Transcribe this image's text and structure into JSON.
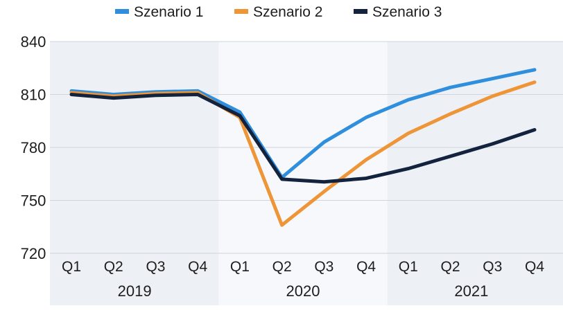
{
  "chart_data": {
    "type": "line",
    "title": "",
    "xlabel": "",
    "ylabel": "",
    "ylim": [
      720,
      840
    ],
    "yticks": [
      720,
      750,
      780,
      810,
      840
    ],
    "grid": true,
    "legend_position": "top",
    "categories": [
      "Q1",
      "Q2",
      "Q3",
      "Q4",
      "Q1",
      "Q2",
      "Q3",
      "Q4",
      "Q1",
      "Q2",
      "Q3",
      "Q4"
    ],
    "groups": [
      {
        "label": "2019",
        "start": 0,
        "end": 3,
        "shaded": true
      },
      {
        "label": "2020",
        "start": 4,
        "end": 7,
        "shaded": false
      },
      {
        "label": "2021",
        "start": 8,
        "end": 11,
        "shaded": true
      }
    ],
    "series": [
      {
        "name": "Szenario 1",
        "color": "#2f8fdd",
        "values": [
          812,
          810,
          811.5,
          812,
          800,
          763,
          783,
          797,
          807,
          814,
          819,
          824
        ]
      },
      {
        "name": "Szenario 2",
        "color": "#ee9537",
        "values": [
          811,
          809,
          810.5,
          811,
          797,
          736,
          755,
          773,
          788,
          799,
          809,
          817
        ]
      },
      {
        "name": "Szenario 3",
        "color": "#13233d",
        "values": [
          810,
          808,
          809.5,
          810,
          798,
          762,
          760.5,
          762.5,
          768,
          775,
          782,
          790
        ]
      }
    ]
  },
  "colors": {
    "band_shade": "#edf0f5",
    "band_light": "#f6f8fb",
    "gridline": "#cfd5dd"
  }
}
